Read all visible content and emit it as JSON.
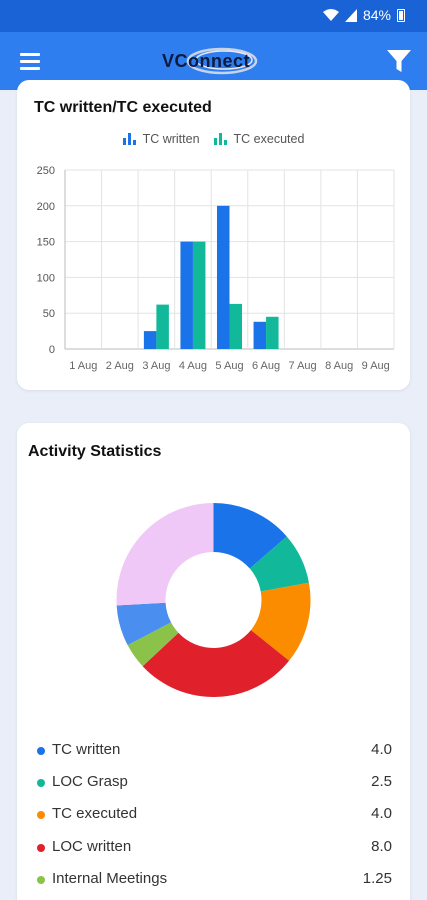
{
  "status_bar": {
    "battery": "84%"
  },
  "app": {
    "logo_text": "VConnect"
  },
  "chart_card": {
    "title": "TC written/TC executed",
    "chart_data": {
      "type": "bar",
      "title": "TC written/TC executed",
      "categories": [
        "1 Aug",
        "2 Aug",
        "3 Aug",
        "4 Aug",
        "5 Aug",
        "6 Aug",
        "7 Aug",
        "8 Aug",
        "9 Aug"
      ],
      "series": [
        {
          "name": "TC written",
          "color": "#1a73e8",
          "values": [
            0,
            0,
            25,
            150,
            200,
            38,
            0,
            0,
            0
          ]
        },
        {
          "name": "TC executed",
          "color": "#12b89a",
          "values": [
            0,
            0,
            62,
            150,
            63,
            45,
            0,
            0,
            0
          ]
        }
      ],
      "ylim": [
        0,
        250
      ],
      "yticks": [
        0,
        50,
        100,
        150,
        200,
        250
      ],
      "grid": true,
      "legend": "top-center"
    }
  },
  "activity_card": {
    "title": "Activity Statistics",
    "chart_data": {
      "type": "pie",
      "donut": true,
      "slices": [
        {
          "label": "TC written",
          "value": 4.0,
          "display": "4.0",
          "color": "#1a73e8"
        },
        {
          "label": "LOC Grasp",
          "value": 2.5,
          "display": "2.5",
          "color": "#12b89a"
        },
        {
          "label": "TC executed",
          "value": 4.0,
          "display": "4.0",
          "color": "#fb8c00"
        },
        {
          "label": "LOC written",
          "value": 8.0,
          "display": "8.0",
          "color": "#e0202a"
        },
        {
          "label": "Internal Meetings",
          "value": 1.25,
          "display": "1.25",
          "color": "#8bc34a"
        },
        {
          "value": 2.0,
          "color": "#4a8ff0"
        },
        {
          "value": 7.6,
          "color": "#f0c8f8"
        }
      ]
    }
  }
}
